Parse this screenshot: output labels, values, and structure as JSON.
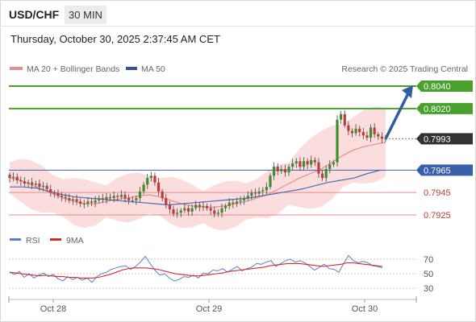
{
  "header": {
    "pair": "USD/CHF",
    "timeframe": "30 MIN",
    "datetime": "Thursday, October 30, 2025 2:37:45 AM CET"
  },
  "legend": {
    "ma20_bb": "MA 20 + Bollinger Bands",
    "ma50": "MA 50",
    "source": "Research © 2025 Trading Central",
    "rsi": "RSI",
    "rsi_ma": "9MA"
  },
  "colors": {
    "resistance": "#4aa02c",
    "support": "#e98b8b",
    "pivot": "#3a5faa",
    "current_tag": "#333333",
    "candle_up": "#3a8f2e",
    "candle_down": "#c23b3b",
    "ma20": "#e98b8b",
    "ma50": "#4a6db5",
    "bollinger_fill": "#fbd5d5",
    "rsi": "#5a7fd0",
    "rsi_ma": "#d42b2b",
    "arrow": "#2f5d9e"
  },
  "chart_data": [
    {
      "type": "candlestick",
      "instrument": "USD/CHF",
      "x_labels": [
        "Oct 28",
        "Oct 29",
        "Oct 30"
      ],
      "levels": [
        {
          "label": "0.8040",
          "value": 0.804,
          "kind": "resistance"
        },
        {
          "label": "0.8020",
          "value": 0.802,
          "kind": "resistance"
        },
        {
          "label": "0.7993",
          "value": 0.7993,
          "kind": "current"
        },
        {
          "label": "0.7965",
          "value": 0.7965,
          "kind": "pivot"
        },
        {
          "label": "0.7945",
          "value": 0.7945,
          "kind": "support"
        },
        {
          "label": "0.7925",
          "value": 0.7925,
          "kind": "support"
        }
      ],
      "close_series": [
        0.7958,
        0.7959,
        0.7956,
        0.7955,
        0.7953,
        0.7954,
        0.7952,
        0.7953,
        0.795,
        0.7951,
        0.7948,
        0.7945,
        0.7944,
        0.7942,
        0.7941,
        0.794,
        0.7938,
        0.7939,
        0.7937,
        0.7935,
        0.7935,
        0.7937,
        0.7936,
        0.7938,
        0.794,
        0.7939,
        0.7941,
        0.794,
        0.7942,
        0.7941,
        0.7943,
        0.794,
        0.7938,
        0.7938,
        0.794,
        0.7946,
        0.7952,
        0.7958,
        0.796,
        0.7954,
        0.7946,
        0.794,
        0.7934,
        0.793,
        0.7926,
        0.7927,
        0.7929,
        0.7931,
        0.7928,
        0.7931,
        0.7934,
        0.7932,
        0.7933,
        0.7931,
        0.7929,
        0.7926,
        0.7927,
        0.7931,
        0.7933,
        0.7936,
        0.7935,
        0.7937,
        0.7938,
        0.794,
        0.7942,
        0.7945,
        0.7944,
        0.7946,
        0.7947,
        0.795,
        0.796,
        0.7968,
        0.7964,
        0.7966,
        0.7963,
        0.7968,
        0.7971,
        0.7973,
        0.7968,
        0.7973,
        0.797,
        0.7974,
        0.7972,
        0.7962,
        0.7958,
        0.7966,
        0.797,
        0.7972,
        0.801,
        0.8015,
        0.8005,
        0.8,
        0.7998,
        0.8002,
        0.7999,
        0.7996,
        0.7994,
        0.8003,
        0.7997,
        0.7995,
        0.7993,
        0.7993
      ],
      "ma20": [
        0.7958,
        0.7956,
        0.7952,
        0.7948,
        0.7944,
        0.794,
        0.7937,
        0.7935,
        0.7935,
        0.7937,
        0.7939,
        0.794,
        0.7942,
        0.7943,
        0.7941,
        0.7938,
        0.7935,
        0.7933,
        0.7932,
        0.7932,
        0.7933,
        0.7935,
        0.7937,
        0.794,
        0.7943,
        0.7948,
        0.7953,
        0.7958,
        0.7962,
        0.7966,
        0.7972,
        0.7978,
        0.7983,
        0.7986,
        0.7988,
        0.799
      ],
      "ma50": [
        0.795,
        0.795,
        0.7949,
        0.7946,
        0.7943,
        0.7941,
        0.794,
        0.7939,
        0.7938,
        0.7937,
        0.7936,
        0.7935,
        0.7934,
        0.7935,
        0.7936,
        0.7937,
        0.7938,
        0.7939,
        0.794,
        0.7942,
        0.7944,
        0.7946,
        0.7948,
        0.7951,
        0.7954,
        0.7956,
        0.7958,
        0.7962,
        0.7965
      ],
      "projection": {
        "from": 0.7993,
        "to": 0.804
      }
    },
    {
      "type": "line",
      "title": "RSI",
      "y_ticks": [
        70,
        50,
        30
      ],
      "series": [
        {
          "name": "RSI",
          "values": [
            52,
            49,
            53,
            45,
            50,
            44,
            48,
            51,
            46,
            49,
            43,
            40,
            46,
            42,
            45,
            41,
            44,
            38,
            46,
            50,
            52,
            56,
            58,
            60,
            61,
            56,
            60,
            66,
            74,
            64,
            55,
            48,
            50,
            44,
            40,
            42,
            46,
            45,
            48,
            44,
            51,
            50,
            55,
            54,
            57,
            52,
            56,
            60,
            54,
            57,
            59,
            64,
            63,
            66,
            68,
            60,
            64,
            68,
            70,
            66,
            68,
            65,
            60,
            55,
            59,
            63,
            57,
            56,
            52,
            64,
            75,
            68,
            65,
            67,
            65,
            61,
            60,
            58
          ]
        },
        {
          "name": "9MA",
          "values": [
            52,
            51,
            50,
            49,
            48,
            47,
            48,
            47,
            46,
            46,
            45,
            45,
            44,
            44,
            44,
            45,
            47,
            49,
            52,
            55,
            57,
            58,
            58,
            58,
            57,
            56,
            54,
            52,
            50,
            49,
            48,
            47,
            47,
            48,
            49,
            50,
            51,
            53,
            54,
            55,
            56,
            57,
            58,
            59,
            61,
            62,
            63,
            64,
            64,
            64,
            63,
            62,
            61,
            60,
            61,
            62,
            63,
            65,
            65,
            64,
            63,
            62,
            61,
            60
          ]
        }
      ]
    }
  ]
}
